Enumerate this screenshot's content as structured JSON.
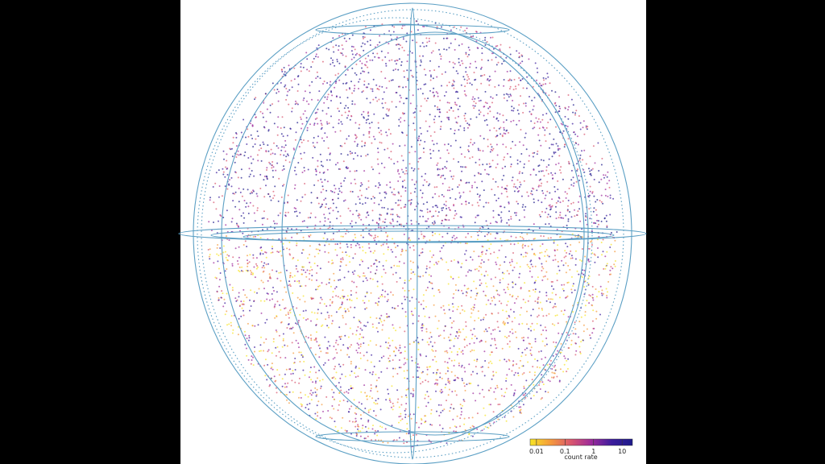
{
  "colorbar": {
    "label": "count rate",
    "ticks": [
      0.01,
      0.1,
      1,
      10
    ],
    "lim": [
      0.006,
      23
    ],
    "log": true,
    "colors": [
      "#f7e425",
      "#f59a3c",
      "#d9566e",
      "#9c2a9b",
      "#3b1c9c",
      "#1d1a8a"
    ]
  }
}
